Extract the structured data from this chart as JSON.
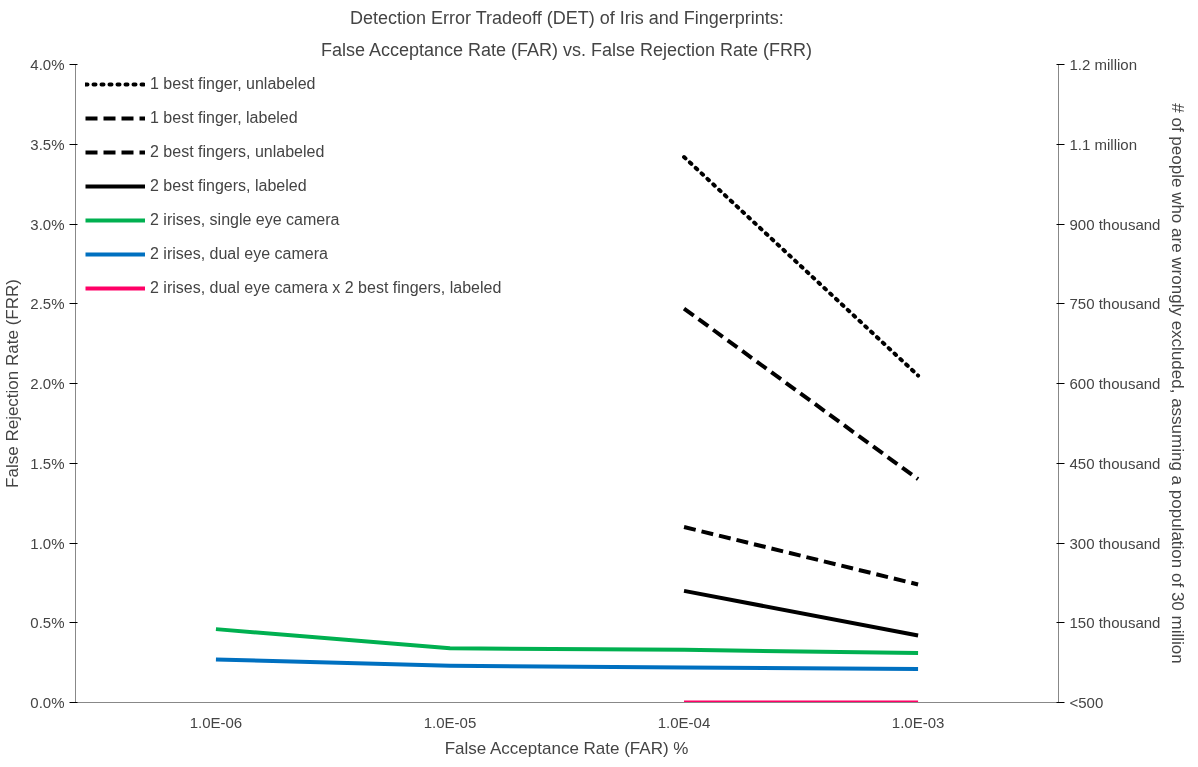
{
  "chart_data": {
    "type": "line",
    "title": "Detection Error Tradeoff (DET) of Iris and Fingerprints:",
    "subtitle": "False Acceptance Rate (FAR) vs. False Rejection Rate (FRR)",
    "xlabel": "False Acceptance Rate (FAR) %",
    "ylabel": "False Rejection Rate (FRR)",
    "y2label": "# of people who are wrongly excluded, assuming a population of 30 million",
    "categories": [
      "1.0E-06",
      "1.0E-05",
      "1.0E-04",
      "1.0E-03"
    ],
    "series": [
      {
        "name": "1 best finger, unlabeled",
        "color": "#000000",
        "line_style": "dotted",
        "values": [
          null,
          null,
          3.42,
          2.05
        ]
      },
      {
        "name": "1 best finger, labeled",
        "color": "#000000",
        "line_style": "dashed",
        "values": [
          null,
          null,
          2.47,
          1.4
        ]
      },
      {
        "name": "2 best fingers, unlabeled",
        "color": "#000000",
        "line_style": "dashed",
        "values": [
          null,
          null,
          1.1,
          0.74
        ]
      },
      {
        "name": "2 best fingers, labeled",
        "color": "#000000",
        "line_style": "solid",
        "values": [
          null,
          null,
          0.7,
          0.42
        ]
      },
      {
        "name": "2 irises, single eye camera",
        "color": "#00b050",
        "line_style": "solid",
        "values": [
          0.46,
          0.34,
          0.33,
          0.31
        ]
      },
      {
        "name": "2 irises, dual eye camera",
        "color": "#0070c0",
        "line_style": "solid",
        "values": [
          0.27,
          0.23,
          0.22,
          0.21
        ]
      },
      {
        "name": "2 irises, dual eye camera x 2 best fingers, labeled",
        "color": "#ff0066",
        "line_style": "solid",
        "values": [
          null,
          null,
          0.0,
          0.0
        ]
      }
    ],
    "ylim": [
      0,
      4
    ],
    "yticks": [
      {
        "value": 0,
        "label": "0.0%"
      },
      {
        "value": 0.5,
        "label": "0.5%"
      },
      {
        "value": 1,
        "label": "1.0%"
      },
      {
        "value": 1.5,
        "label": "1.5%"
      },
      {
        "value": 2,
        "label": "2.0%"
      },
      {
        "value": 2.5,
        "label": "2.5%"
      },
      {
        "value": 3,
        "label": "3.0%"
      },
      {
        "value": 3.5,
        "label": "3.5%"
      },
      {
        "value": 4,
        "label": "4.0%"
      }
    ],
    "y2lim": [
      0,
      1200000
    ],
    "y2ticks": [
      {
        "value": 0,
        "label": "<500"
      },
      {
        "value": 150000,
        "label": "150 thousand"
      },
      {
        "value": 300000,
        "label": "300 thousand"
      },
      {
        "value": 450000,
        "label": "450 thousand"
      },
      {
        "value": 600000,
        "label": "600 thousand"
      },
      {
        "value": 750000,
        "label": "750 thousand"
      },
      {
        "value": 900000,
        "label": "900 thousand"
      },
      {
        "value": 1050000,
        "label": "1.1 million"
      },
      {
        "value": 1200000,
        "label": "1.2 million"
      }
    ],
    "grid": false,
    "legend": "top left",
    "marker": "none"
  }
}
